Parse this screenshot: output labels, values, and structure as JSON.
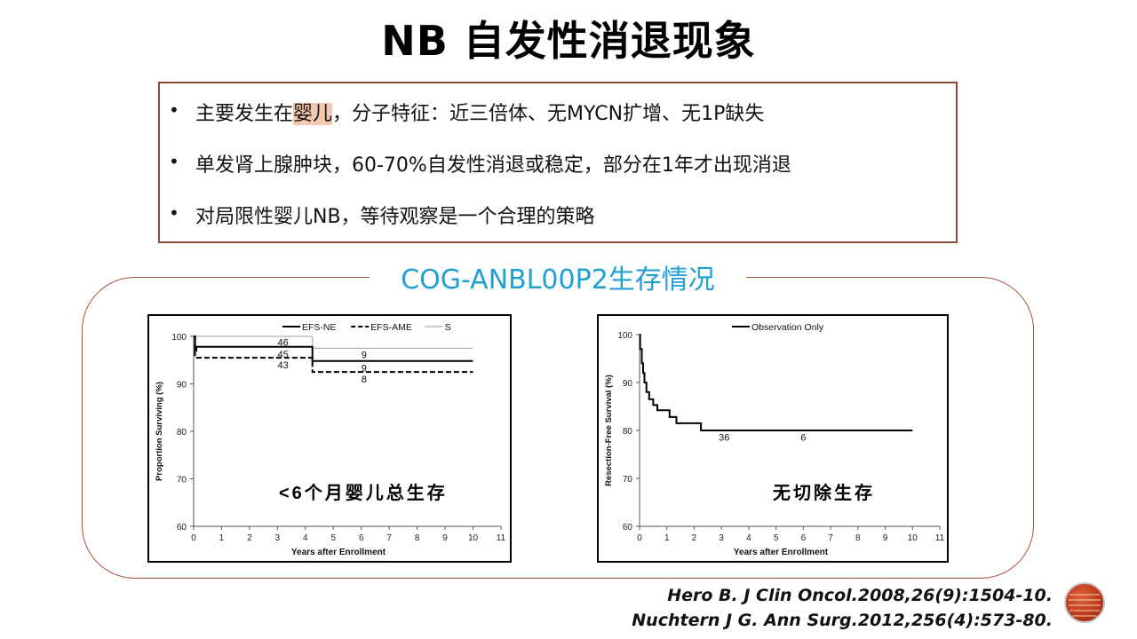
{
  "title": "NB  自发性消退现象",
  "bullets": {
    "b1_pre": "主要发生在",
    "b1_hl": "婴儿",
    "b1_post": "，分子特征：近三倍体、无MYCN扩增、无1P缺失",
    "b2": "单发肾上腺肿块，60-70%自发性消退或稳定，部分在1年才出现消退",
    "b3": "对局限性婴儿NB，等待观察是一个合理的策略"
  },
  "section_label": "COG-ANBL00P2生存情况",
  "chart_data": [
    {
      "type": "line",
      "title": "",
      "annotation": "<6个月婴儿总生存",
      "xlabel": "Years after Enrollment",
      "ylabel": "Proportion Surviving (%)",
      "xlim": [
        0,
        11
      ],
      "ylim": [
        60,
        100
      ],
      "xticks": [
        "0",
        "1",
        "2",
        "3",
        "4",
        "5",
        "6",
        "7",
        "8",
        "9",
        "10",
        "11"
      ],
      "yticks": [
        "60",
        "70",
        "80",
        "90",
        "100"
      ],
      "legend_position": "top-right",
      "series": [
        {
          "name": "EFS-NE",
          "style": "solid",
          "color": "#000000",
          "x": [
            0,
            0.05,
            0.05,
            0.1,
            0.1,
            4.25,
            4.25,
            10
          ],
          "y": [
            100,
            100,
            97,
            97,
            97.8,
            97.8,
            94.8,
            94.8
          ]
        },
        {
          "name": "EFS-AME",
          "style": "dashed",
          "color": "#000000",
          "x": [
            0,
            0.05,
            0.05,
            4.25,
            4.25,
            10
          ],
          "y": [
            100,
            100,
            95.5,
            95.5,
            92.5,
            92.5
          ]
        },
        {
          "name": "S",
          "style": "solid",
          "color": "#b0b0b0",
          "x": [
            0,
            4.25,
            4.25,
            10
          ],
          "y": [
            100,
            100,
            97.5,
            97.5
          ]
        }
      ],
      "at_risk_labels": [
        {
          "x": 3.2,
          "y": 98.8,
          "text": "46"
        },
        {
          "x": 3.2,
          "y": 96.3,
          "text": "45"
        },
        {
          "x": 3.2,
          "y": 94.0,
          "text": "43"
        },
        {
          "x": 6.1,
          "y": 96.2,
          "text": "9"
        },
        {
          "x": 6.1,
          "y": 93.4,
          "text": "9"
        },
        {
          "x": 6.1,
          "y": 91.0,
          "text": "8"
        }
      ]
    },
    {
      "type": "line",
      "title": "",
      "annotation": "无切除生存",
      "xlabel": "Years after Enrollment",
      "ylabel": "Resection-Free Survival (%)",
      "xlim": [
        0,
        11
      ],
      "ylim": [
        60,
        100
      ],
      "xticks": [
        "0",
        "1",
        "2",
        "3",
        "4",
        "5",
        "6",
        "7",
        "8",
        "9",
        "10",
        "11"
      ],
      "yticks": [
        "60",
        "70",
        "80",
        "90",
        "100"
      ],
      "legend_position": "top-center",
      "series": [
        {
          "name": "Observation Only",
          "style": "solid",
          "color": "#000000",
          "x": [
            0,
            0.02,
            0.02,
            0.08,
            0.08,
            0.13,
            0.13,
            0.18,
            0.18,
            0.25,
            0.25,
            0.35,
            0.35,
            0.5,
            0.5,
            0.65,
            0.65,
            1.1,
            1.1,
            1.35,
            1.35,
            2.25,
            2.25,
            10
          ],
          "y": [
            100,
            100,
            97,
            97,
            94,
            94,
            92,
            92,
            90,
            90,
            88,
            88,
            86.5,
            86.5,
            85.3,
            85.3,
            84.2,
            84.2,
            82.8,
            82.8,
            81.5,
            81.5,
            80,
            80
          ]
        }
      ],
      "at_risk_labels": [
        {
          "x": 3.1,
          "y": 78.6,
          "text": "36"
        },
        {
          "x": 6.0,
          "y": 78.6,
          "text": "6"
        }
      ]
    }
  ],
  "references": {
    "ref1": "Hero B. J Clin Oncol.2008,26(9):1504-10.",
    "ref2": "Nuchtern J G. Ann Surg.2012,256(4):573-80."
  },
  "colors": {
    "accent_blue": "#1ea0d4",
    "frame_brown": "#a0543f",
    "highlight": "#f4c7b0"
  }
}
